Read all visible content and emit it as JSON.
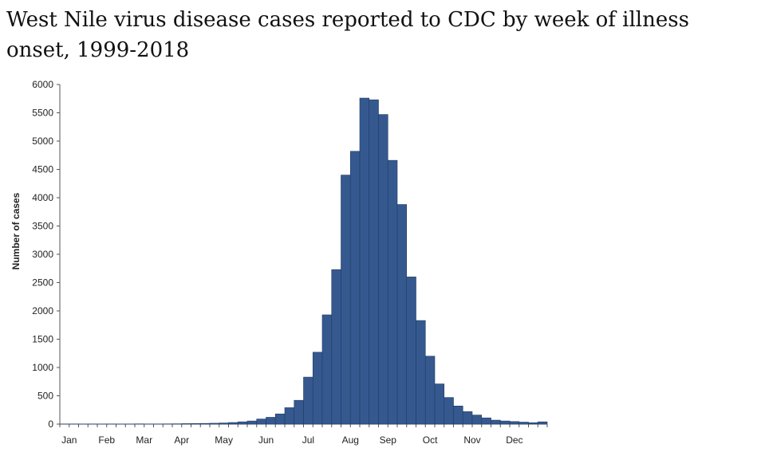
{
  "chart_data": {
    "type": "bar",
    "title": "West Nile virus disease cases reported to CDC by week of illness onset, 1999-2018",
    "xlabel": "",
    "ylabel": "Number of cases",
    "ylim": [
      0,
      6000
    ],
    "yticks": [
      0,
      500,
      1000,
      1500,
      2000,
      2500,
      3000,
      3500,
      4000,
      4500,
      5000,
      5500,
      6000
    ],
    "months": [
      "Jan",
      "Feb",
      "Mar",
      "Apr",
      "May",
      "Jun",
      "Jul",
      "Aug",
      "Sep",
      "Oct",
      "Nov",
      "Dec"
    ],
    "month_label_week": [
      1.5,
      5.5,
      9.5,
      13.5,
      18,
      22.5,
      27,
      31.5,
      35.5,
      40,
      44.5,
      49
    ],
    "bar_color": "#35598f",
    "bar_edge_color": "#1f3a63",
    "series": [
      {
        "name": "Cases",
        "weeks": [
          1,
          2,
          3,
          4,
          5,
          6,
          7,
          8,
          9,
          10,
          11,
          12,
          13,
          14,
          15,
          16,
          17,
          18,
          19,
          20,
          21,
          22,
          23,
          24,
          25,
          26,
          27,
          28,
          29,
          30,
          31,
          32,
          33,
          34,
          35,
          36,
          37,
          38,
          39,
          40,
          41,
          42,
          43,
          44,
          45,
          46,
          47,
          48,
          49,
          50,
          51,
          52
        ],
        "values": [
          2,
          3,
          2,
          3,
          2,
          3,
          1,
          2,
          4,
          3,
          3,
          4,
          5,
          8,
          10,
          12,
          15,
          20,
          28,
          40,
          55,
          90,
          120,
          180,
          290,
          420,
          830,
          1270,
          1930,
          2730,
          4400,
          4820,
          5760,
          5730,
          5470,
          4660,
          3880,
          2600,
          1830,
          1200,
          710,
          470,
          320,
          220,
          160,
          110,
          70,
          55,
          45,
          35,
          25,
          40
        ]
      }
    ]
  }
}
